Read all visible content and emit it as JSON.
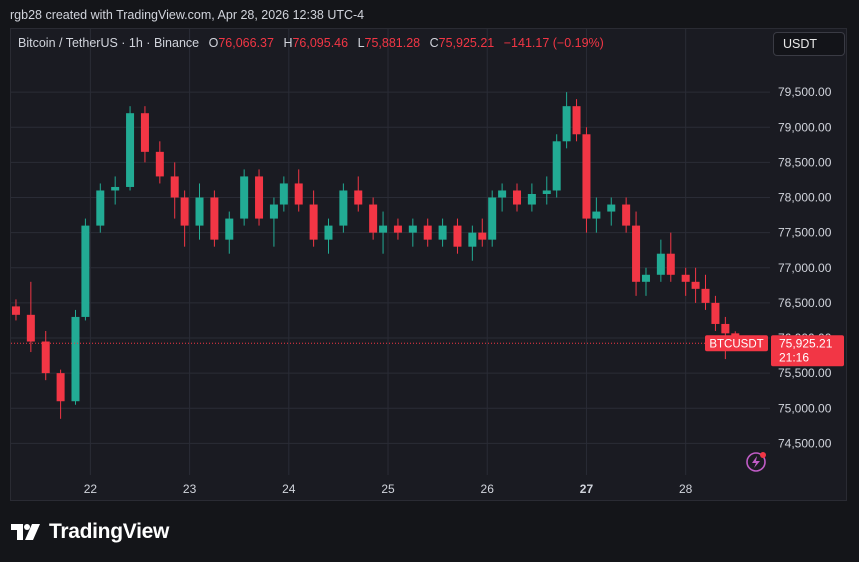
{
  "header": {
    "attribution": "rgb28 created with TradingView.com, Apr 28, 2026 12:38 UTC-4"
  },
  "legend": {
    "symbol": "Bitcoin / TetherUS · 1h · Binance",
    "open_label": "O",
    "open": "76,066.37",
    "high_label": "H",
    "high": "76,095.46",
    "low_label": "L",
    "low": "75,881.28",
    "close_label": "C",
    "close": "75,925.21",
    "change": "−141.17 (−0.19%)"
  },
  "currency_button": "USDT",
  "price_tag": {
    "ticker": "BTCUSDT",
    "price": "75,925.21",
    "countdown": "21:16"
  },
  "brand": {
    "name": "TradingView"
  },
  "colors": {
    "up": "#22ab94",
    "down": "#f23645",
    "background": "#1a1b22",
    "grid": "#2a2c36",
    "text": "#d1d4dc"
  },
  "icons": {
    "logo": "tradingview-logo-icon",
    "alert": "lightning-alert-icon"
  },
  "chart_data": {
    "type": "candlestick",
    "title": "",
    "x_ticks": [
      "22",
      "23",
      "24",
      "25",
      "26",
      "27",
      "28"
    ],
    "x_tick_bold": "27",
    "y_ticks": [
      74500,
      75000,
      75500,
      76000,
      76500,
      77000,
      77500,
      78000,
      78500,
      79000,
      79500
    ],
    "y_tick_labels": [
      "74,500.00",
      "75,000.00",
      "75,500.00",
      "76,000.00",
      "76,500.00",
      "77,000.00",
      "77,500.00",
      "78,000.00",
      "78,500.00",
      "79,000.00",
      "79,500.00"
    ],
    "ylim": [
      74050,
      80000
    ],
    "xlim": [
      21.2,
      28.85
    ],
    "last_price": 75925.21,
    "grid": true,
    "series": [
      {
        "name": "BTCUSDT",
        "points": [
          [
            21.25,
            76450,
            76550,
            76250,
            76330
          ],
          [
            21.4,
            76330,
            76800,
            75800,
            75950
          ],
          [
            21.55,
            75950,
            76100,
            75400,
            75500
          ],
          [
            21.7,
            75500,
            75550,
            74850,
            75100
          ],
          [
            21.85,
            75100,
            76400,
            75050,
            76300
          ],
          [
            21.95,
            76300,
            77700,
            76250,
            77600
          ],
          [
            22.1,
            77600,
            78200,
            77500,
            78100
          ],
          [
            22.25,
            78100,
            78300,
            77900,
            78150
          ],
          [
            22.4,
            78150,
            79300,
            78100,
            79200
          ],
          [
            22.55,
            79200,
            79300,
            78500,
            78650
          ],
          [
            22.7,
            78650,
            78800,
            78200,
            78300
          ],
          [
            22.85,
            78300,
            78500,
            77700,
            78000
          ],
          [
            22.95,
            78000,
            78100,
            77300,
            77600
          ],
          [
            23.1,
            77600,
            78200,
            77400,
            78000
          ],
          [
            23.25,
            78000,
            78100,
            77300,
            77400
          ],
          [
            23.4,
            77400,
            77800,
            77200,
            77700
          ],
          [
            23.55,
            77700,
            78400,
            77600,
            78300
          ],
          [
            23.7,
            78300,
            78400,
            77600,
            77700
          ],
          [
            23.85,
            77700,
            78000,
            77300,
            77900
          ],
          [
            23.95,
            77900,
            78300,
            77800,
            78200
          ],
          [
            24.1,
            78200,
            78400,
            77800,
            77900
          ],
          [
            24.25,
            77900,
            78100,
            77300,
            77400
          ],
          [
            24.4,
            77400,
            77700,
            77200,
            77600
          ],
          [
            24.55,
            77600,
            78200,
            77500,
            78100
          ],
          [
            24.7,
            78100,
            78300,
            77800,
            77900
          ],
          [
            24.85,
            77900,
            78000,
            77400,
            77500
          ],
          [
            24.95,
            77500,
            77800,
            77200,
            77600
          ],
          [
            25.1,
            77600,
            77700,
            77400,
            77500
          ],
          [
            25.25,
            77500,
            77700,
            77300,
            77600
          ],
          [
            25.4,
            77600,
            77700,
            77300,
            77400
          ],
          [
            25.55,
            77400,
            77700,
            77300,
            77600
          ],
          [
            25.7,
            77600,
            77700,
            77200,
            77300
          ],
          [
            25.85,
            77300,
            77600,
            77100,
            77500
          ],
          [
            25.95,
            77500,
            77700,
            77300,
            77400
          ],
          [
            26.05,
            77400,
            78100,
            77300,
            78000
          ],
          [
            26.15,
            78000,
            78200,
            77800,
            78100
          ],
          [
            26.3,
            78100,
            78200,
            77800,
            77900
          ],
          [
            26.45,
            77900,
            78200,
            77800,
            78050
          ],
          [
            26.6,
            78050,
            78300,
            77900,
            78100
          ],
          [
            26.7,
            78100,
            78900,
            78000,
            78800
          ],
          [
            26.8,
            78800,
            79500,
            78700,
            79300
          ],
          [
            26.9,
            79300,
            79400,
            78800,
            78900
          ],
          [
            27.0,
            78900,
            79000,
            77500,
            77700
          ],
          [
            27.1,
            77700,
            78000,
            77500,
            77800
          ],
          [
            27.25,
            77800,
            78000,
            77600,
            77900
          ],
          [
            27.4,
            77900,
            78000,
            77500,
            77600
          ],
          [
            27.5,
            77600,
            77800,
            76600,
            76800
          ],
          [
            27.6,
            76800,
            77000,
            76600,
            76900
          ],
          [
            27.75,
            76900,
            77400,
            76800,
            77200
          ],
          [
            27.85,
            77200,
            77500,
            76800,
            76900
          ],
          [
            28.0,
            76900,
            77000,
            76600,
            76800
          ],
          [
            28.1,
            76800,
            77000,
            76500,
            76700
          ],
          [
            28.2,
            76700,
            76900,
            76400,
            76500
          ],
          [
            28.3,
            76500,
            76600,
            76100,
            76200
          ],
          [
            28.4,
            76200,
            76300,
            75700,
            76066.37
          ],
          [
            28.5,
            76066.37,
            76095.46,
            75881.28,
            75925.21
          ]
        ]
      }
    ]
  }
}
